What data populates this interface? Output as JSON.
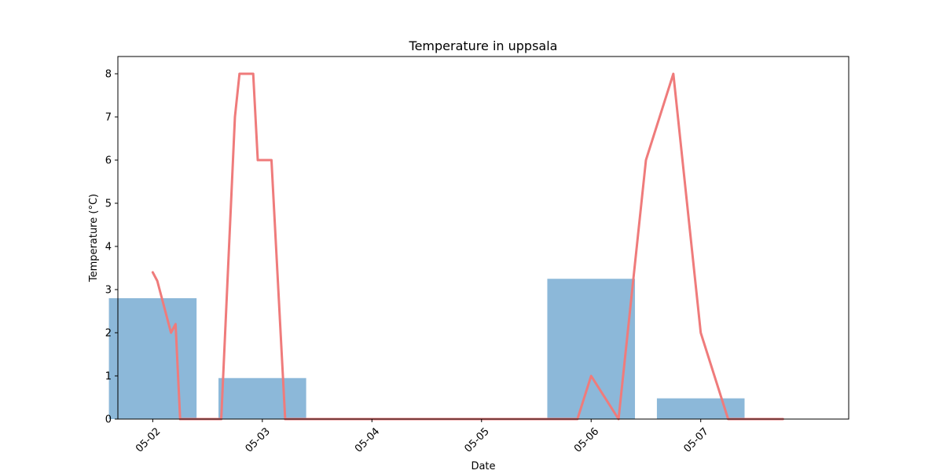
{
  "chart_data": {
    "type": "bar",
    "title": "Temperature in uppsala",
    "xlabel": "Date",
    "ylabel": "Temperature (°C)",
    "x_range": [
      "2023-05-01 16:22",
      "2023-05-08 08:24"
    ],
    "ylim": [
      0,
      8.4
    ],
    "yticks": [
      0,
      1,
      2,
      3,
      4,
      5,
      6,
      7,
      8
    ],
    "xtick_labels": [
      {
        "date": "2023-05-02",
        "label": "05-02"
      },
      {
        "date": "2023-05-03",
        "label": "05-03"
      },
      {
        "date": "2023-05-04",
        "label": "05-04"
      },
      {
        "date": "2023-05-05",
        "label": "05-05"
      },
      {
        "date": "2023-05-06",
        "label": "05-06"
      },
      {
        "date": "2023-05-07",
        "label": "05-07"
      }
    ],
    "grid": false,
    "bar_color": "#8cb8d9",
    "line_color": "#ef7b7b",
    "bars": [
      {
        "date": "2023-05-02",
        "value": 2.8
      },
      {
        "date": "2023-05-03",
        "value": 0.95
      },
      {
        "date": "2023-05-04",
        "value": 0
      },
      {
        "date": "2023-05-05",
        "value": 0
      },
      {
        "date": "2023-05-06",
        "value": 3.25
      },
      {
        "date": "2023-05-07",
        "value": 0.48
      }
    ],
    "line": [
      {
        "t": "2023-05-02 00:00",
        "v": 3.4
      },
      {
        "t": "2023-05-02 01:00",
        "v": 3.2
      },
      {
        "t": "2023-05-02 02:00",
        "v": 2.8
      },
      {
        "t": "2023-05-02 04:00",
        "v": 2.0
      },
      {
        "t": "2023-05-02 05:00",
        "v": 2.2
      },
      {
        "t": "2023-05-02 06:00",
        "v": 0
      },
      {
        "t": "2023-05-02 15:00",
        "v": 0
      },
      {
        "t": "2023-05-02 18:00",
        "v": 7.0
      },
      {
        "t": "2023-05-02 19:00",
        "v": 8.0
      },
      {
        "t": "2023-05-02 22:00",
        "v": 8.0
      },
      {
        "t": "2023-05-02 23:00",
        "v": 6.0
      },
      {
        "t": "2023-05-03 02:00",
        "v": 6.0
      },
      {
        "t": "2023-05-03 03:00",
        "v": 4.0
      },
      {
        "t": "2023-05-03 05:00",
        "v": 0
      },
      {
        "t": "2023-05-05 21:00",
        "v": 0
      },
      {
        "t": "2023-05-06 00:00",
        "v": 1.0
      },
      {
        "t": "2023-05-06 06:00",
        "v": 0
      },
      {
        "t": "2023-05-06 12:00",
        "v": 6.0
      },
      {
        "t": "2023-05-06 18:00",
        "v": 8.0
      },
      {
        "t": "2023-05-07 00:00",
        "v": 2.0
      },
      {
        "t": "2023-05-07 06:00",
        "v": 0
      },
      {
        "t": "2023-05-07 18:00",
        "v": 0
      }
    ]
  }
}
